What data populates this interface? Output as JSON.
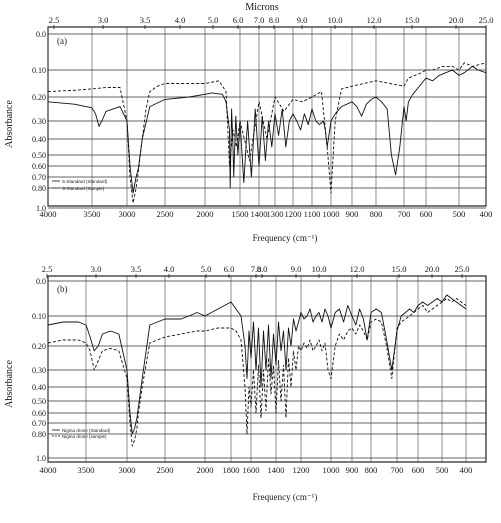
{
  "figure": {
    "panels": [
      {
        "panel_label": "(a)",
        "top_axis_title": "Microns",
        "x_axis_title": "Frequency (cm⁻¹)",
        "y_axis_title": "Absorbance",
        "legend": [
          "S-Standard (Standard)",
          "S-Standard (Sample)"
        ]
      },
      {
        "panel_label": "(b)",
        "top_axis_title": "",
        "x_axis_title": "Frequency (cm⁻¹)",
        "y_axis_title": "Absorbance",
        "legend": [
          "Nigma drone (Standard)",
          "Nigma drone (sample)"
        ]
      }
    ]
  },
  "chart_data": [
    {
      "type": "line",
      "title": "(a)",
      "xlabel": "Frequency (cm⁻¹)",
      "ylabel": "Absorbance",
      "top_axis_label": "Microns",
      "x_ticks": [
        4000,
        3500,
        3000,
        2500,
        2000,
        1500,
        1400,
        1300,
        1200,
        1100,
        1000,
        900,
        800,
        700,
        600,
        500,
        400
      ],
      "top_ticks": [
        "2.5",
        "3.0",
        "3.5",
        "4.0",
        "5.0",
        "6.0",
        "7.0",
        "8.0",
        "9.0",
        "10.0",
        "12.0",
        "15.0",
        "20.0",
        "25.0"
      ],
      "y_ticks": [
        "0.0",
        "0.10",
        "0.20",
        "0.30",
        "0.40",
        "0.50",
        "0.60",
        "0.70",
        "0.80",
        "1.0"
      ],
      "y_tick_values": [
        0.0,
        0.1,
        0.2,
        0.3,
        0.4,
        0.5,
        0.6,
        0.7,
        0.8,
        1.0
      ],
      "grid": true,
      "legend_position": "bottom-left",
      "series": [
        {
          "name": "S-Standard (Standard)",
          "style": "solid",
          "x": [
            4000,
            3700,
            3500,
            3450,
            3400,
            3360,
            3300,
            3100,
            3000,
            2960,
            2920,
            2880,
            2850,
            2800,
            2700,
            2500,
            2200,
            2000,
            1900,
            1750,
            1700,
            1650,
            1640,
            1620,
            1600,
            1590,
            1560,
            1530,
            1500,
            1480,
            1460,
            1440,
            1420,
            1400,
            1380,
            1360,
            1340,
            1320,
            1300,
            1280,
            1260,
            1240,
            1220,
            1200,
            1180,
            1160,
            1140,
            1120,
            1100,
            1080,
            1060,
            1040,
            1030,
            1020,
            1000,
            980,
            950,
            900,
            880,
            860,
            840,
            820,
            800,
            780,
            760,
            745,
            730,
            715,
            700,
            690,
            680,
            660,
            640,
            620,
            600,
            580,
            560,
            540,
            520,
            500,
            480,
            450,
            430,
            400
          ],
          "y": [
            0.22,
            0.23,
            0.245,
            0.27,
            0.33,
            0.3,
            0.26,
            0.24,
            0.3,
            0.6,
            0.85,
            0.7,
            0.62,
            0.4,
            0.24,
            0.21,
            0.2,
            0.19,
            0.185,
            0.19,
            0.22,
            0.35,
            0.8,
            0.25,
            0.45,
            0.7,
            0.28,
            0.5,
            0.3,
            0.75,
            0.3,
            0.7,
            0.25,
            0.6,
            0.28,
            0.55,
            0.3,
            0.45,
            0.27,
            0.38,
            0.25,
            0.45,
            0.3,
            0.27,
            0.3,
            0.35,
            0.27,
            0.32,
            0.25,
            0.3,
            0.32,
            0.3,
            0.35,
            0.45,
            0.3,
            0.27,
            0.24,
            0.22,
            0.24,
            0.28,
            0.23,
            0.21,
            0.2,
            0.22,
            0.25,
            0.5,
            0.68,
            0.45,
            0.24,
            0.3,
            0.22,
            0.19,
            0.17,
            0.15,
            0.13,
            0.14,
            0.12,
            0.11,
            0.1,
            0.12,
            0.11,
            0.09,
            0.1,
            0.11
          ]
        },
        {
          "name": "S-Standard (Sample)",
          "style": "dashed",
          "x": [
            4000,
            3700,
            3500,
            3300,
            3100,
            3000,
            2960,
            2920,
            2880,
            2850,
            2800,
            2750,
            2700,
            2600,
            2500,
            2300,
            2000,
            1800,
            1700,
            1650,
            1600,
            1550,
            1500,
            1450,
            1400,
            1350,
            1300,
            1250,
            1200,
            1150,
            1100,
            1050,
            1020,
            1000,
            980,
            950,
            900,
            850,
            800,
            750,
            700,
            680,
            650,
            620,
            600,
            580,
            550,
            520,
            500,
            480,
            450,
            400
          ],
          "y": [
            0.18,
            0.175,
            0.17,
            0.165,
            0.165,
            0.3,
            0.7,
            0.95,
            0.8,
            0.65,
            0.4,
            0.25,
            0.18,
            0.16,
            0.15,
            0.15,
            0.15,
            0.14,
            0.18,
            0.6,
            0.35,
            0.45,
            0.3,
            0.55,
            0.22,
            0.4,
            0.2,
            0.26,
            0.21,
            0.22,
            0.2,
            0.18,
            0.45,
            0.85,
            0.3,
            0.17,
            0.16,
            0.15,
            0.14,
            0.15,
            0.16,
            0.13,
            0.12,
            0.11,
            0.1,
            0.1,
            0.09,
            0.09,
            0.1,
            0.08,
            0.09,
            0.08
          ]
        }
      ]
    },
    {
      "type": "line",
      "title": "(b)",
      "xlabel": "Frequency (cm⁻¹)",
      "ylabel": "Absorbance",
      "x_ticks": [
        4000,
        3500,
        3000,
        2500,
        2000,
        1800,
        1600,
        1400,
        1200,
        1000,
        900,
        800,
        700,
        600,
        500,
        400
      ],
      "top_ticks": [
        "2.5",
        "3.0",
        "3.5",
        "4.0",
        "5.0",
        "6.0",
        "7.0",
        "8.0",
        "9.0",
        "10.0",
        "12.0",
        "15.0",
        "20.0",
        "25.0"
      ],
      "y_ticks": [
        "0.0",
        "0.10",
        "0.20",
        "0.30",
        "0.40",
        "0.50",
        "0.60",
        "0.70",
        "0.80",
        "1.0"
      ],
      "y_tick_values": [
        0.0,
        0.1,
        0.2,
        0.3,
        0.4,
        0.5,
        0.6,
        0.7,
        0.8,
        1.0
      ],
      "grid": true,
      "legend_position": "bottom-left",
      "series": [
        {
          "name": "Nigma drone (Standard)",
          "style": "solid",
          "x": [
            4000,
            3800,
            3600,
            3500,
            3450,
            3400,
            3350,
            3300,
            3200,
            3100,
            3000,
            2960,
            2930,
            2900,
            2870,
            2850,
            2800,
            2700,
            2500,
            2300,
            2200,
            2100,
            2000,
            1900,
            1850,
            1800,
            1750,
            1700,
            1660,
            1640,
            1620,
            1600,
            1580,
            1560,
            1540,
            1520,
            1500,
            1480,
            1460,
            1440,
            1420,
            1400,
            1380,
            1360,
            1340,
            1320,
            1300,
            1280,
            1260,
            1240,
            1220,
            1200,
            1180,
            1160,
            1140,
            1120,
            1100,
            1080,
            1060,
            1040,
            1020,
            1000,
            980,
            960,
            940,
            920,
            900,
            880,
            860,
            840,
            820,
            800,
            780,
            760,
            740,
            720,
            700,
            680,
            660,
            640,
            620,
            600,
            580,
            560,
            540,
            520,
            500,
            480,
            460,
            440,
            420,
            400
          ],
          "y": [
            0.13,
            0.12,
            0.12,
            0.13,
            0.17,
            0.22,
            0.2,
            0.16,
            0.15,
            0.16,
            0.3,
            0.6,
            0.8,
            0.75,
            0.65,
            0.55,
            0.35,
            0.13,
            0.11,
            0.11,
            0.1,
            0.09,
            0.1,
            0.08,
            0.07,
            0.06,
            0.08,
            0.1,
            0.2,
            0.35,
            0.15,
            0.25,
            0.12,
            0.3,
            0.14,
            0.4,
            0.15,
            0.3,
            0.13,
            0.35,
            0.16,
            0.28,
            0.12,
            0.22,
            0.15,
            0.3,
            0.14,
            0.2,
            0.11,
            0.15,
            0.12,
            0.09,
            0.11,
            0.1,
            0.08,
            0.12,
            0.1,
            0.09,
            0.12,
            0.08,
            0.1,
            0.14,
            0.09,
            0.08,
            0.12,
            0.07,
            0.1,
            0.13,
            0.08,
            0.11,
            0.18,
            0.09,
            0.08,
            0.09,
            0.18,
            0.3,
            0.15,
            0.1,
            0.09,
            0.08,
            0.09,
            0.07,
            0.06,
            0.07,
            0.06,
            0.05,
            0.06,
            0.04,
            0.05,
            0.06,
            0.07,
            0.08
          ]
        },
        {
          "name": "Nigma drone (sample)",
          "style": "dashed",
          "x": [
            4000,
            3800,
            3600,
            3500,
            3450,
            3400,
            3350,
            3300,
            3200,
            3100,
            3000,
            2960,
            2930,
            2900,
            2870,
            2850,
            2800,
            2700,
            2500,
            2300,
            2100,
            2000,
            1900,
            1800,
            1750,
            1700,
            1660,
            1640,
            1620,
            1600,
            1580,
            1560,
            1540,
            1520,
            1500,
            1480,
            1460,
            1440,
            1420,
            1400,
            1380,
            1360,
            1340,
            1320,
            1300,
            1280,
            1260,
            1240,
            1220,
            1200,
            1180,
            1160,
            1140,
            1120,
            1100,
            1080,
            1060,
            1040,
            1020,
            1000,
            980,
            960,
            940,
            920,
            900,
            880,
            860,
            840,
            820,
            800,
            780,
            760,
            740,
            720,
            700,
            680,
            660,
            640,
            620,
            600,
            580,
            560,
            540,
            520,
            500,
            480,
            460,
            440,
            420,
            400
          ],
          "y": [
            0.19,
            0.18,
            0.18,
            0.19,
            0.22,
            0.3,
            0.26,
            0.22,
            0.21,
            0.22,
            0.35,
            0.7,
            0.9,
            0.85,
            0.75,
            0.6,
            0.4,
            0.19,
            0.17,
            0.16,
            0.15,
            0.15,
            0.14,
            0.14,
            0.15,
            0.18,
            0.4,
            0.8,
            0.4,
            0.55,
            0.3,
            0.6,
            0.28,
            0.65,
            0.3,
            0.58,
            0.25,
            0.45,
            0.28,
            0.6,
            0.26,
            0.5,
            0.28,
            0.65,
            0.25,
            0.4,
            0.22,
            0.3,
            0.2,
            0.22,
            0.19,
            0.21,
            0.18,
            0.22,
            0.2,
            0.18,
            0.22,
            0.19,
            0.3,
            0.35,
            0.2,
            0.16,
            0.18,
            0.15,
            0.14,
            0.16,
            0.13,
            0.15,
            0.18,
            0.12,
            0.11,
            0.12,
            0.2,
            0.35,
            0.14,
            0.12,
            0.11,
            0.1,
            0.09,
            0.08,
            0.07,
            0.09,
            0.08,
            0.07,
            0.06,
            0.05,
            0.06,
            0.05,
            0.06,
            0.07
          ]
        }
      ]
    }
  ]
}
